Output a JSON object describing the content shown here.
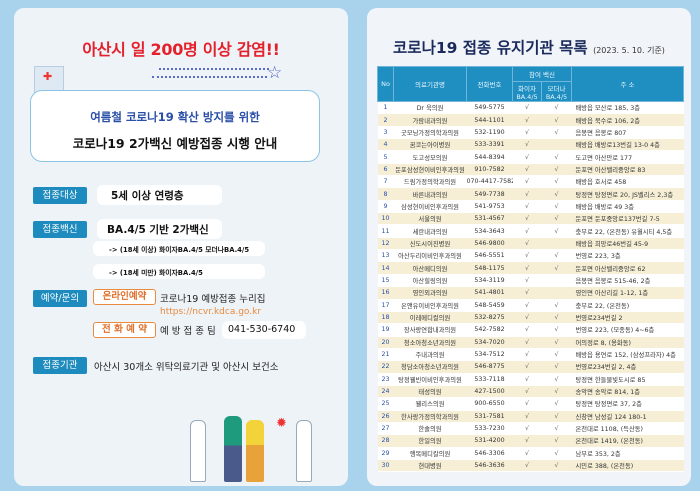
{
  "left": {
    "headline": "아산시 일 200명 이상 감염!!",
    "bubble_line1": "여름철 코로나19 확산 방지를 위한",
    "bubble_line2": "코로나19 2가백신 예방접종 시행 안내",
    "target_label": "접종대상",
    "target_value": "5세 이상 연령층",
    "vaccine_label": "접종백신",
    "vaccine_value": "BA.4/5 기반 2가백신",
    "vaccine_adult": "-> (18세 이상) 화이자BA.4/5  모더나BA.4/5",
    "vaccine_minor": "-> (18세 미만) 화이자BA.4/5",
    "reserve_label": "예약/문의",
    "online_button": "온라인예약",
    "online_text": "코로나19 예방접종 누리집",
    "online_url": "https://ncvr.kdca.go.kr",
    "phone_button": "전 화 예 약",
    "phone_team": "예 방 접 종 팀",
    "phone_number": "041-530-6740",
    "sites_label": "접종기관",
    "sites_value": "아산시 30개소 위탁의료기관 및 아산시 보건소"
  },
  "right": {
    "title": "코로나19 접종 유지기관 목록",
    "date": "(2023. 5. 10. 기준)",
    "headers": {
      "no": "No",
      "name": "의료기관명",
      "phone": "전화번호",
      "vaccine_group": "참여 백신",
      "pfizer": "화이자 BA.4/5",
      "moderna": "모더나 BA.4/5",
      "address": "주 소"
    },
    "check": "√",
    "rows": [
      [
        "1",
        "Dr 욱의원",
        "549-5775",
        true,
        true,
        "배방읍 모산로 185, 3층"
      ],
      [
        "2",
        "가람내과의원",
        "544-1101",
        true,
        true,
        "배방읍 북수로 106, 2층"
      ],
      [
        "3",
        "굿모닝가정의학과의원",
        "532-1190",
        true,
        true,
        "음봉면 음봉로 807"
      ],
      [
        "4",
        "꿈코는아이병원",
        "533-3391",
        true,
        false,
        "배방읍 배방로13번길 13-0 4층"
      ],
      [
        "5",
        "도고성모의원",
        "544-8394",
        true,
        true,
        "도고면 아산만로 177"
      ],
      [
        "6",
        "둔포삼성현이비인후과의원",
        "910-7582",
        true,
        true,
        "둔포면 아산밸리중앙로 83"
      ],
      [
        "7",
        "드림가정의학과의원",
        "070-4417-7582",
        true,
        true,
        "배방읍 호서로 458"
      ],
      [
        "8",
        "바른내과의원",
        "549-7738",
        true,
        true,
        "탕정면 탕정면로 20, JS벨리스 2,3층"
      ],
      [
        "9",
        "삼성현이비인후과의원",
        "541-9753",
        true,
        true,
        "배방읍 배방로 49 3층"
      ],
      [
        "10",
        "서울의원",
        "531-4567",
        true,
        true,
        "둔포면 둔포중앙로137번길 7-5"
      ],
      [
        "11",
        "세란내과의원",
        "534-3643",
        true,
        true,
        "충무로 22, (온천동) 유월시티 4,5층"
      ],
      [
        "12",
        "신도시이진병원",
        "546-9800",
        true,
        false,
        "배방읍 희망로46번길 45-9"
      ],
      [
        "13",
        "아산두리이비인후과의원",
        "546-5551",
        true,
        true,
        "번영로 223, 3층"
      ],
      [
        "14",
        "아산메디의원",
        "548-1175",
        true,
        true,
        "둔포면 아산밸리중앙로 62"
      ],
      [
        "15",
        "아산힐링의원",
        "534-3119",
        true,
        false,
        "음봉면 음봉로 515-46, 2층"
      ],
      [
        "16",
        "영인외과의원",
        "541-4801",
        true,
        false,
        "영인면 아산리길 1-12, 1층"
      ],
      [
        "17",
        "온앤유이비인후과의원",
        "548-5459",
        true,
        true,
        "충무로 22, (온천동)"
      ],
      [
        "18",
        "이레메디컬의원",
        "532-8275",
        true,
        true,
        "번영로234번길 2"
      ],
      [
        "19",
        "장사랑연합내과의원",
        "542-7582",
        true,
        true,
        "번영로 223, (모종동) 4~6층"
      ],
      [
        "20",
        "청소아청소년과의원",
        "534-7020",
        true,
        true,
        "어의정로 8, (용화동)"
      ],
      [
        "21",
        "주내과의원",
        "534-7512",
        true,
        true,
        "배방읍 용연로 152, (삼성프라자) 4층"
      ],
      [
        "22",
        "청담소아청소년과의원",
        "546-8775",
        true,
        true,
        "번영로234번길 2, 4층"
      ],
      [
        "23",
        "탕정웰빈이비인후과의원",
        "533-7118",
        true,
        true,
        "탕정면 한들물빛도시로 85"
      ],
      [
        "24",
        "태성의원",
        "427-1500",
        true,
        true,
        "송악면 송악로 814, 1층"
      ],
      [
        "25",
        "웰리스의원",
        "900-6550",
        true,
        true,
        "탕정면 탕정면로 37, 2층"
      ],
      [
        "26",
        "한사랑가정의학과의원",
        "531-7581",
        true,
        true,
        "신창면 남성길 124 180-1"
      ],
      [
        "27",
        "한솔의원",
        "533-7230",
        true,
        true,
        "온천대로 1108, (득산동)"
      ],
      [
        "28",
        "한일의원",
        "531-4200",
        true,
        true,
        "온천대로 1419, (온천동)"
      ],
      [
        "29",
        "행복메디칼의원",
        "546-3306",
        true,
        true,
        "남부로 353, 2층"
      ],
      [
        "30",
        "현대병원",
        "546-3636",
        true,
        true,
        "시민로 388, (온천동)"
      ]
    ]
  },
  "colors": {
    "headline": "#e4202b",
    "label_bg": "#1d8bbd",
    "table_header": "#1f8fc2",
    "accent_orange": "#e0702a",
    "title": "#1b2a5c"
  }
}
